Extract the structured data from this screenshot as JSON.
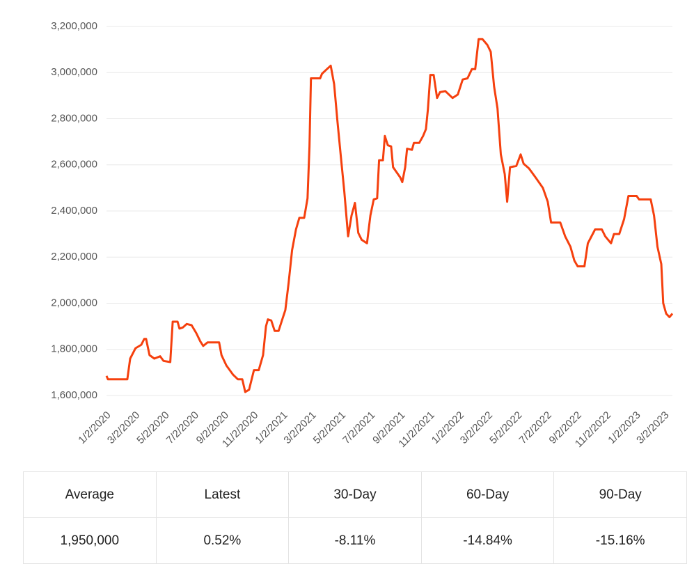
{
  "chart_data": {
    "type": "line",
    "x": [
      "1/2/2020",
      "1/5/2020",
      "2/14/2020",
      "2/20/2020",
      "3/2/2020",
      "3/14/2020",
      "3/20/2020",
      "3/24/2020",
      "3/31/2020",
      "4/10/2020",
      "4/22/2020",
      "4/29/2020",
      "5/13/2020",
      "5/18/2020",
      "5/28/2020",
      "6/1/2020",
      "6/8/2020",
      "6/16/2020",
      "6/26/2020",
      "7/6/2020",
      "7/14/2020",
      "7/20/2020",
      "7/29/2020",
      "8/22/2020",
      "8/27/2020",
      "9/6/2020",
      "9/20/2020",
      "9/30/2020",
      "10/9/2020",
      "10/15/2020",
      "10/23/2020",
      "11/2/2020",
      "11/12/2020",
      "11/21/2020",
      "11/27/2020",
      "12/1/2020",
      "12/8/2020",
      "12/15/2020",
      "12/23/2020",
      "12/30/2020",
      "1/6/2021",
      "1/13/2021",
      "1/20/2021",
      "1/28/2021",
      "2/4/2021",
      "2/14/2021",
      "2/21/2021",
      "2/25/2021",
      "2/28/2021",
      "3/19/2021",
      "3/23/2021",
      "4/2/2021",
      "4/10/2021",
      "4/17/2021",
      "4/24/2021",
      "5/1/2021",
      "5/8/2021",
      "5/16/2021",
      "5/23/2021",
      "5/30/2021",
      "6/6/2021",
      "6/13/2021",
      "6/24/2021",
      "7/1/2021",
      "7/8/2021",
      "7/15/2021",
      "7/19/2021",
      "7/27/2021",
      "7/31/2021",
      "8/6/2021",
      "8/13/2021",
      "8/17/2021",
      "9/1/2021",
      "9/5/2021",
      "9/11/2021",
      "9/15/2021",
      "9/25/2021",
      "9/29/2021",
      "10/10/2021",
      "10/18/2021",
      "10/24/2021",
      "10/28/2021",
      "11/2/2021",
      "11/9/2021",
      "11/16/2021",
      "11/22/2021",
      "12/3/2021",
      "12/18/2021",
      "12/29/2021",
      "1/8/2022",
      "1/18/2022",
      "1/27/2022",
      "2/3/2022",
      "2/10/2022",
      "2/18/2022",
      "2/28/2022",
      "3/7/2022",
      "3/14/2022",
      "3/21/2022",
      "3/28/2022",
      "4/5/2022",
      "4/10/2022",
      "4/16/2022",
      "4/29/2022",
      "5/8/2022",
      "5/14/2022",
      "5/25/2022",
      "6/8/2022",
      "6/23/2022",
      "7/3/2022",
      "7/10/2022",
      "7/29/2022",
      "8/8/2022",
      "8/19/2022",
      "8/27/2022",
      "9/3/2022",
      "9/17/2022",
      "9/24/2022",
      "10/9/2022",
      "10/23/2022",
      "10/30/2022",
      "11/11/2022",
      "11/17/2022",
      "11/28/2022",
      "12/8/2022",
      "12/17/2022",
      "1/3/2023",
      "1/8/2023",
      "2/1/2023",
      "2/8/2023",
      "2/15/2023",
      "2/23/2023",
      "2/27/2023",
      "3/5/2023",
      "3/12/2023",
      "3/18/2023"
    ],
    "series": [
      {
        "color": "#f5400e",
        "values": [
          1685000,
          1670000,
          1670000,
          1760000,
          1805000,
          1820000,
          1845000,
          1845000,
          1775000,
          1760000,
          1770000,
          1750000,
          1745000,
          1920000,
          1920000,
          1890000,
          1895000,
          1910000,
          1905000,
          1870000,
          1835000,
          1815000,
          1830000,
          1830000,
          1775000,
          1730000,
          1690000,
          1670000,
          1670000,
          1615000,
          1625000,
          1710000,
          1710000,
          1775000,
          1900000,
          1930000,
          1925000,
          1880000,
          1880000,
          1925000,
          1970000,
          2090000,
          2230000,
          2320000,
          2370000,
          2370000,
          2455000,
          2680000,
          2975000,
          2975000,
          2995000,
          3015000,
          3030000,
          2950000,
          2785000,
          2635000,
          2485000,
          2290000,
          2380000,
          2435000,
          2305000,
          2275000,
          2260000,
          2380000,
          2450000,
          2455000,
          2620000,
          2620000,
          2725000,
          2685000,
          2680000,
          2590000,
          2545000,
          2525000,
          2590000,
          2670000,
          2665000,
          2695000,
          2695000,
          2725000,
          2755000,
          2840000,
          2990000,
          2990000,
          2890000,
          2915000,
          2920000,
          2890000,
          2905000,
          2970000,
          2975000,
          3015000,
          3015000,
          3145000,
          3145000,
          3120000,
          3090000,
          2940000,
          2845000,
          2645000,
          2560000,
          2440000,
          2590000,
          2595000,
          2645000,
          2605000,
          2585000,
          2545000,
          2500000,
          2440000,
          2350000,
          2350000,
          2290000,
          2245000,
          2185000,
          2160000,
          2160000,
          2260000,
          2320000,
          2320000,
          2290000,
          2260000,
          2300000,
          2300000,
          2365000,
          2465000,
          2465000,
          2450000,
          2450000,
          2380000,
          2245000,
          2170000,
          2000000,
          1955000,
          1940000,
          1955000
        ]
      }
    ],
    "xlim": [
      "1/2/2020",
      "3/18/2023"
    ],
    "xticks": [
      "1/2/2020",
      "3/2/2020",
      "5/2/2020",
      "7/2/2020",
      "9/2/2020",
      "11/2/2020",
      "1/2/2021",
      "3/2/2021",
      "5/2/2021",
      "7/2/2021",
      "9/2/2021",
      "11/2/2021",
      "1/2/2022",
      "3/2/2022",
      "5/2/2022",
      "7/2/2022",
      "9/2/2022",
      "11/2/2022",
      "1/2/2023",
      "3/2/2023"
    ],
    "ylim": [
      1600000,
      3200000
    ],
    "yticks": [
      {
        "value": 1600000,
        "label": "1,600,000"
      },
      {
        "value": 1800000,
        "label": "1,800,000"
      },
      {
        "value": 2000000,
        "label": "2,000,000"
      },
      {
        "value": 2200000,
        "label": "2,200,000"
      },
      {
        "value": 2400000,
        "label": "2,400,000"
      },
      {
        "value": 2600000,
        "label": "2,600,000"
      },
      {
        "value": 2800000,
        "label": "2,800,000"
      },
      {
        "value": 3000000,
        "label": "3,000,000"
      },
      {
        "value": 3200000,
        "label": "3,200,000"
      }
    ],
    "grid": true
  },
  "table": {
    "header": [
      "Average",
      "Latest",
      "30-Day",
      "60-Day",
      "90-Day"
    ],
    "rows": [
      [
        "1,950,000",
        "0.52%",
        "-8.11%",
        "-14.84%",
        "-15.16%"
      ]
    ]
  }
}
